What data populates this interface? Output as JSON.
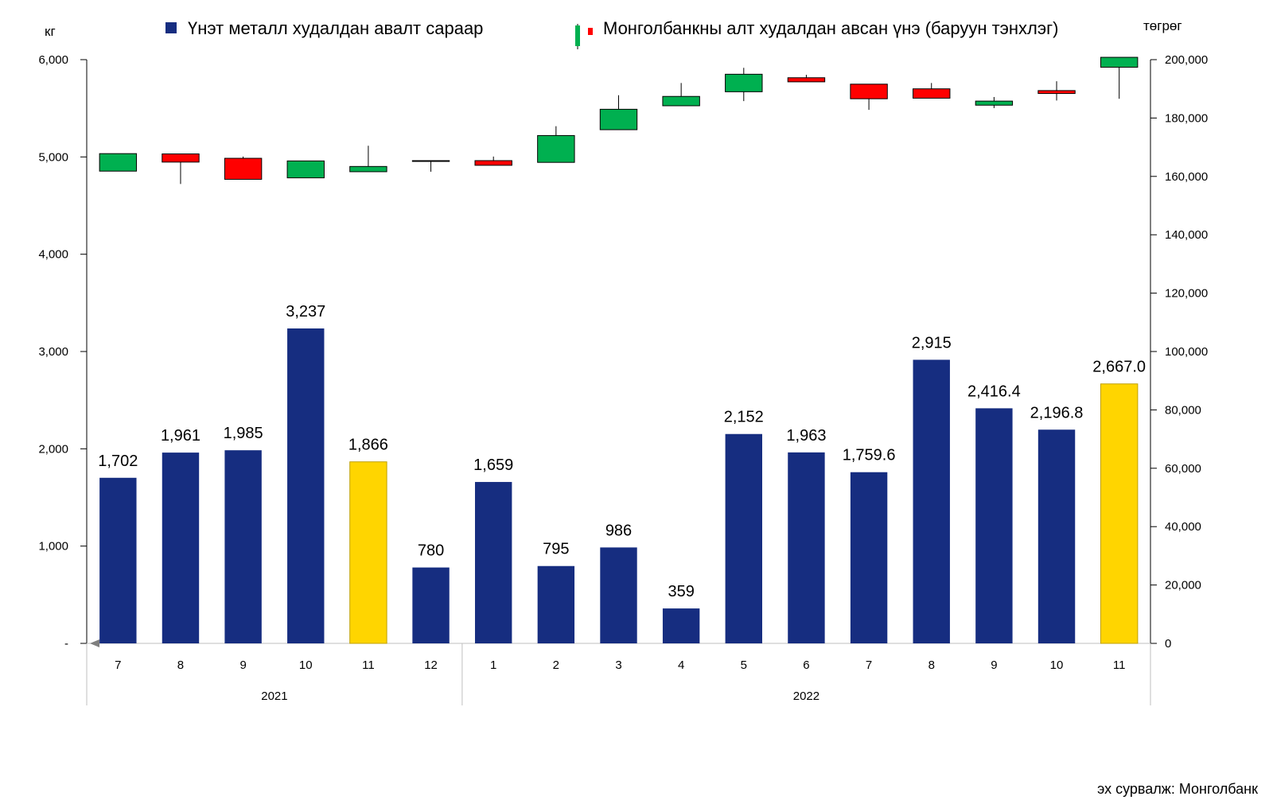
{
  "chart_data": {
    "type": "bar+candlestick",
    "left_unit": "кг",
    "right_unit": "төгрөг",
    "legend": {
      "bars": "Үнэт металл худалдан авалт сараар",
      "candles": "Монголбанкны алт худалдан авсан үнэ (баруун тэнхлэг)"
    },
    "source": "эх сурвалж: Монголбанк",
    "y_left": {
      "min": 0,
      "max": 6000,
      "ticks": [
        "-",
        "1,000",
        "2,000",
        "3,000",
        "4,000",
        "5,000",
        "6,000"
      ]
    },
    "y_right": {
      "min": 0,
      "max": 200000,
      "ticks": [
        "0",
        "20,000",
        "40,000",
        "60,000",
        "80,000",
        "100,000",
        "120,000",
        "140,000",
        "160,000",
        "180,000",
        "200,000"
      ]
    },
    "years": [
      {
        "label": "2021",
        "count": 6
      },
      {
        "label": "2022",
        "count": 11
      }
    ],
    "months": [
      "7",
      "8",
      "9",
      "10",
      "11",
      "12",
      "1",
      "2",
      "3",
      "4",
      "5",
      "6",
      "7",
      "8",
      "9",
      "10",
      "11"
    ],
    "bar_values": [
      1702,
      1961,
      1985,
      3237,
      1866,
      780,
      1659,
      795,
      986,
      359,
      2152,
      1963,
      1759.6,
      2915,
      2416.4,
      2196.8,
      2667.0
    ],
    "bar_labels": [
      "1,702",
      "1,961",
      "1,985",
      "3,237",
      "1,866",
      "780",
      "1,659",
      "795",
      "986",
      "359",
      "2,152",
      "1,963",
      "1,759.6",
      "2,915",
      "2,416.4",
      "2,196.8",
      "2,667.0"
    ],
    "highlight_indices": [
      4,
      16
    ],
    "candles": [
      {
        "open": 161800,
        "close": 167800,
        "high": 167800,
        "low": 161800
      },
      {
        "open": 167700,
        "close": 164900,
        "high": 167700,
        "low": 157400
      },
      {
        "open": 166200,
        "close": 159000,
        "high": 166800,
        "low": 159000
      },
      {
        "open": 159500,
        "close": 165300,
        "high": 165300,
        "low": 159500
      },
      {
        "open": 161600,
        "close": 163400,
        "high": 170500,
        "low": 161600
      },
      {
        "open": 165400,
        "close": 165400,
        "high": 165400,
        "low": 161600
      },
      {
        "open": 165400,
        "close": 163800,
        "high": 166800,
        "low": 163800
      },
      {
        "open": 164800,
        "close": 174000,
        "high": 177200,
        "low": 164800
      },
      {
        "open": 176000,
        "close": 183000,
        "high": 187800,
        "low": 176000
      },
      {
        "open": 184200,
        "close": 187400,
        "high": 192000,
        "low": 184200
      },
      {
        "open": 189000,
        "close": 195000,
        "high": 197200,
        "low": 185800
      },
      {
        "open": 193800,
        "close": 192400,
        "high": 194800,
        "low": 192400
      },
      {
        "open": 191600,
        "close": 186600,
        "high": 191600,
        "low": 182800
      },
      {
        "open": 190000,
        "close": 186800,
        "high": 192000,
        "low": 186800
      },
      {
        "open": 184400,
        "close": 185800,
        "high": 187200,
        "low": 183400
      },
      {
        "open": 189400,
        "close": 188400,
        "high": 192600,
        "low": 186000
      },
      {
        "open": 197400,
        "close": 200800,
        "high": 200800,
        "low": 186600
      }
    ],
    "colors": {
      "bar": "#162d80",
      "highlight": "#ffd500",
      "up": "#00b050",
      "down": "#ff0000",
      "axis": "#000000",
      "category_axis": "#bfbfbf"
    }
  }
}
